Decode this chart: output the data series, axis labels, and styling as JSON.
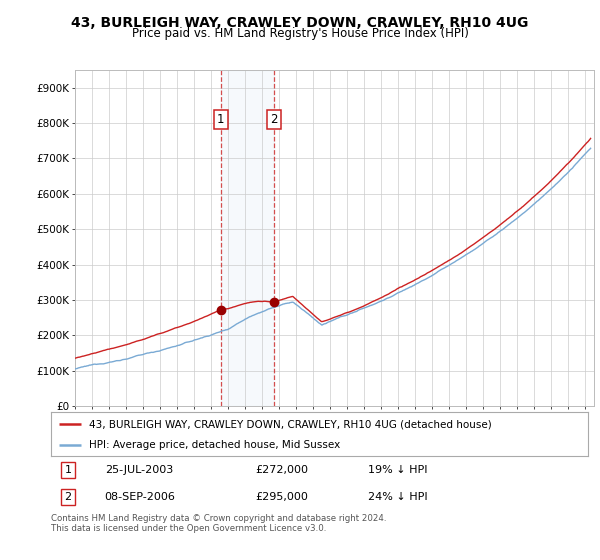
{
  "title": "43, BURLEIGH WAY, CRAWLEY DOWN, CRAWLEY, RH10 4UG",
  "subtitle": "Price paid vs. HM Land Registry's House Price Index (HPI)",
  "hpi_color": "#7aaad4",
  "price_color": "#cc2222",
  "highlight_color": "#ddeeff",
  "marker_color": "#990000",
  "ylim": [
    0,
    950000
  ],
  "yticks": [
    0,
    100000,
    200000,
    300000,
    400000,
    500000,
    600000,
    700000,
    800000,
    900000
  ],
  "ytick_labels": [
    "£0",
    "£100K",
    "£200K",
    "£300K",
    "£400K",
    "£500K",
    "£600K",
    "£700K",
    "£800K",
    "£900K"
  ],
  "sale1_date": 2003.57,
  "sale1_price": 272000,
  "sale2_date": 2006.69,
  "sale2_price": 295000,
  "legend_line1": "43, BURLEIGH WAY, CRAWLEY DOWN, CRAWLEY, RH10 4UG (detached house)",
  "legend_line2": "HPI: Average price, detached house, Mid Sussex",
  "footer": "Contains HM Land Registry data © Crown copyright and database right 2024.\nThis data is licensed under the Open Government Licence v3.0.",
  "xmin": 1995.0,
  "xmax": 2025.5,
  "background": "#ffffff"
}
